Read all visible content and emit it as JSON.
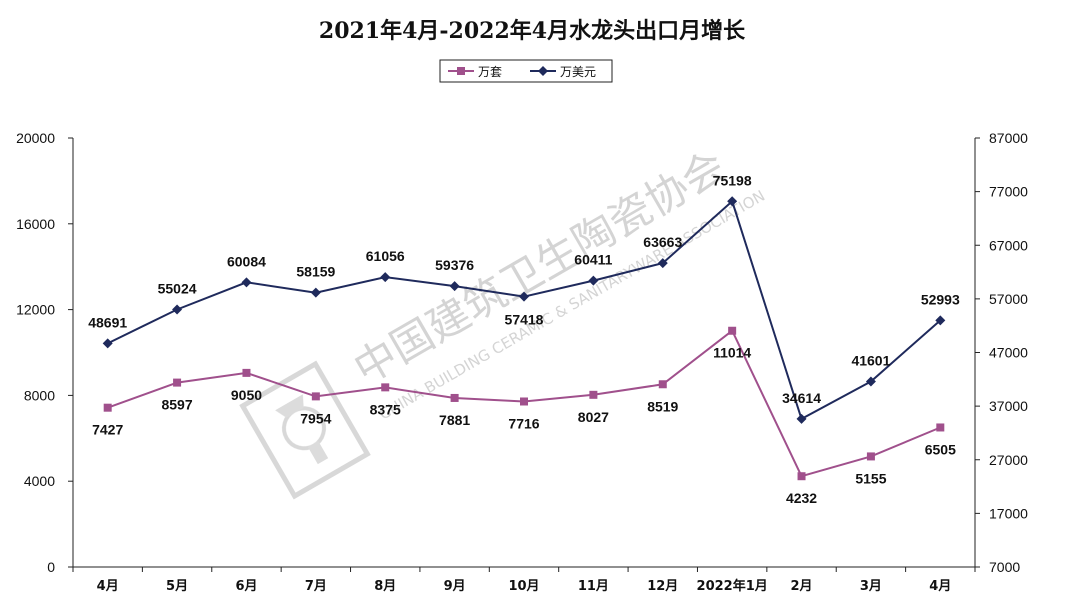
{
  "chart_data": {
    "type": "line",
    "title": "2021年4月-2022年4月水龙头出口月增长",
    "categories": [
      "4月",
      "5月",
      "6月",
      "7月",
      "8月",
      "9月",
      "10月",
      "11月",
      "12月",
      "2022年1月",
      "2月",
      "3月",
      "4月"
    ],
    "series": [
      {
        "name": "万套",
        "axis": "left",
        "color": "#a0508c",
        "marker": "square",
        "values": [
          7427,
          8597,
          9050,
          7954,
          8375,
          7881,
          7716,
          8027,
          8519,
          11014,
          4232,
          5155,
          6505
        ]
      },
      {
        "name": "万美元",
        "axis": "right",
        "color": "#1f2a5c",
        "marker": "diamond",
        "values": [
          48691,
          55024,
          60084,
          58159,
          61056,
          59376,
          57418,
          60411,
          63663,
          75198,
          34614,
          41601,
          52993
        ]
      }
    ],
    "y_left": {
      "range": [
        0,
        20000
      ],
      "ticks": [
        "0",
        "4000",
        "8000",
        "12000",
        "16000",
        "20000"
      ]
    },
    "y_right": {
      "range": [
        7000,
        87000
      ],
      "ticks": [
        "7000",
        "17000",
        "27000",
        "37000",
        "47000",
        "57000",
        "67000",
        "77000",
        "87000"
      ]
    },
    "grid": false,
    "legend_position": "top-center"
  },
  "watermark": {
    "cn": "中国建筑卫生陶瓷协会",
    "en": "CHINA BUILDING CERAMIC & SANITARYWARE ASSOCIATION"
  }
}
